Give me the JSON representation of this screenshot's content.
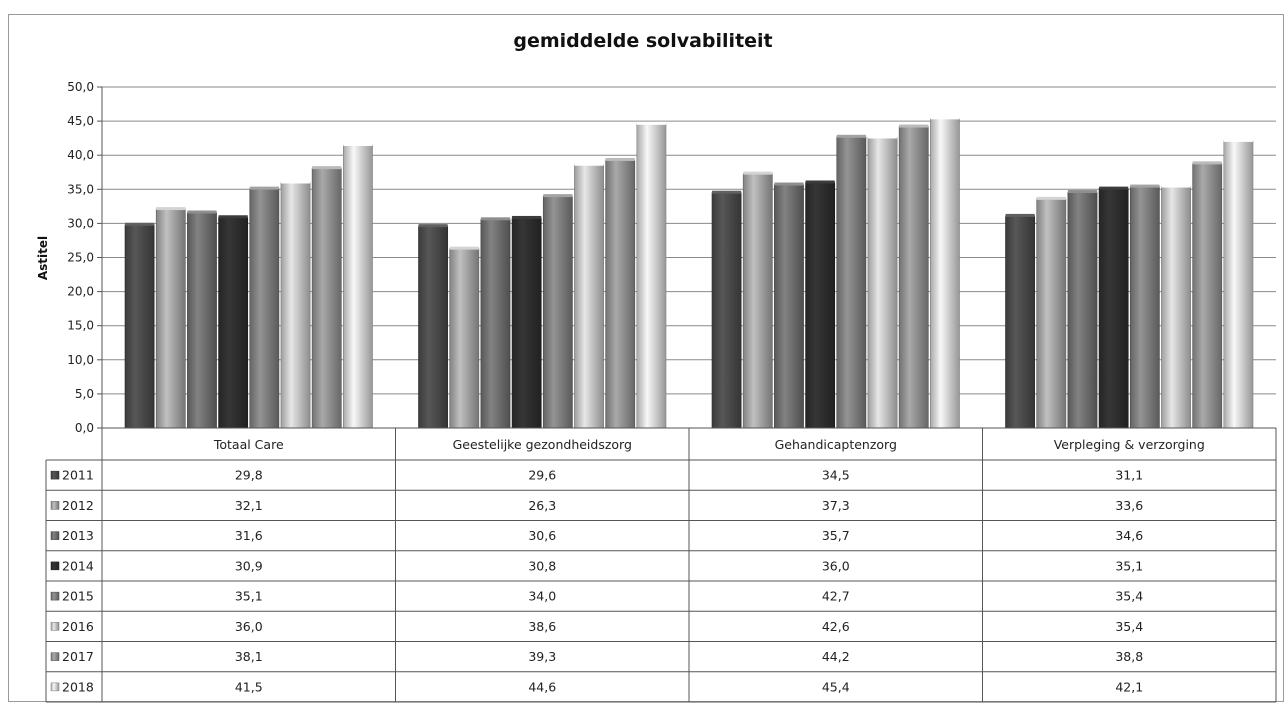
{
  "chart_data": {
    "type": "bar",
    "title": "gemiddelde solvabiliteit",
    "xlabel": "",
    "ylabel": "Astitel",
    "ylim": [
      0,
      50
    ],
    "yticks": [
      "0,0",
      "5,0",
      "10,0",
      "15,0",
      "20,0",
      "25,0",
      "30,0",
      "35,0",
      "40,0",
      "45,0",
      "50,0"
    ],
    "grid": true,
    "legend": "data-table",
    "categories": [
      "Totaal Care",
      "Geestelijke gezondheidszorg",
      "Gehandicaptenzorg",
      "Verpleging & verzorging"
    ],
    "series": [
      {
        "name": "2011",
        "color": "#4a4a4a",
        "values": [
          29.8,
          29.6,
          34.5,
          31.1
        ],
        "labels": [
          "29,8",
          "29,6",
          "34,5",
          "31,1"
        ]
      },
      {
        "name": "2012",
        "color": "#a3a3a3",
        "values": [
          32.1,
          26.3,
          37.3,
          33.6
        ],
        "labels": [
          "32,1",
          "26,3",
          "37,3",
          "33,6"
        ]
      },
      {
        "name": "2013",
        "color": "#6e6e6e",
        "values": [
          31.6,
          30.6,
          35.7,
          34.6
        ],
        "labels": [
          "31,6",
          "30,6",
          "35,7",
          "34,6"
        ]
      },
      {
        "name": "2014",
        "color": "#2e2e2e",
        "values": [
          30.9,
          30.8,
          36.0,
          35.1
        ],
        "labels": [
          "30,9",
          "30,8",
          "36,0",
          "35,1"
        ]
      },
      {
        "name": "2015",
        "color": "#7d7d7d",
        "values": [
          35.1,
          34.0,
          42.7,
          35.4
        ],
        "labels": [
          "35,1",
          "34,0",
          "42,7",
          "35,4"
        ]
      },
      {
        "name": "2016",
        "color": "#c4c4c4",
        "values": [
          36.0,
          38.6,
          42.6,
          35.4
        ],
        "labels": [
          "36,0",
          "38,6",
          "42,6",
          "35,4"
        ]
      },
      {
        "name": "2017",
        "color": "#8f8f8f",
        "values": [
          38.1,
          39.3,
          44.2,
          38.8
        ],
        "labels": [
          "38,1",
          "39,3",
          "44,2",
          "38,8"
        ]
      },
      {
        "name": "2018",
        "color": "#d2d2d2",
        "values": [
          41.5,
          44.6,
          45.4,
          42.1
        ],
        "labels": [
          "41,5",
          "44,6",
          "45,4",
          "42,1"
        ]
      }
    ]
  }
}
